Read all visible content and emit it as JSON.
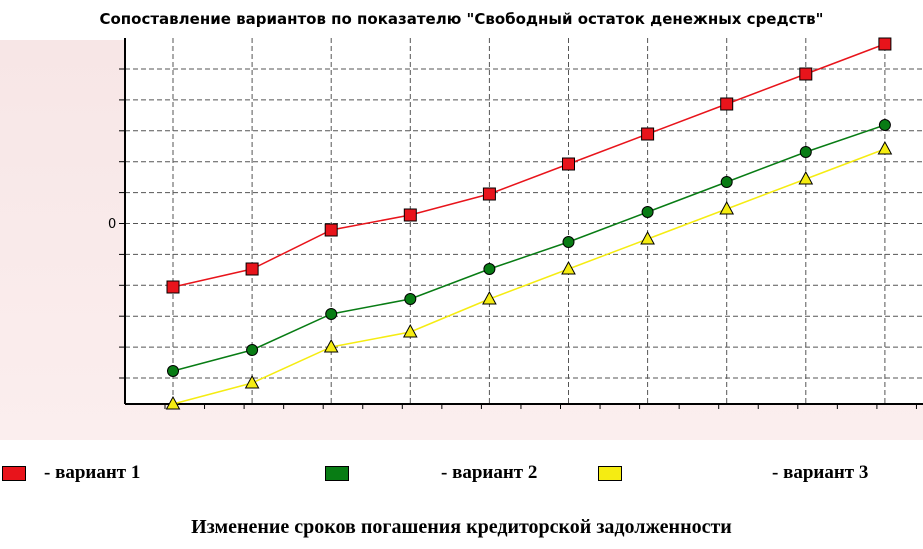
{
  "chart_data": {
    "type": "line",
    "title": "Сопоставление вариантов по показателю \"Свободный остаток денежных средств\"",
    "xlabel": "Изменение сроков погашения кредиторской задолженности",
    "ylabel": "",
    "y_tick_label_visible": "0",
    "x": [
      1,
      2,
      3,
      4,
      5,
      6,
      7,
      8,
      9,
      10
    ],
    "ylim": [
      0,
      12.2
    ],
    "grid": true,
    "legend_position": "bottom",
    "series": [
      {
        "name": "- вариант 1",
        "color": "#e8141b",
        "marker": "square",
        "values": [
          3.9,
          4.5,
          5.8,
          6.3,
          7.0,
          8.0,
          9.0,
          10.0,
          11.0,
          12.0
        ]
      },
      {
        "name": "- вариант 2",
        "color": "#087c14",
        "marker": "circle",
        "values": [
          1.1,
          1.8,
          3.0,
          3.5,
          4.5,
          5.4,
          6.4,
          7.4,
          8.4,
          9.3
        ]
      },
      {
        "name": "- вариант 3",
        "color": "#f5ec12",
        "marker": "triangle",
        "values": [
          0.0,
          0.7,
          1.9,
          2.4,
          3.5,
          4.5,
          5.5,
          6.5,
          7.5,
          8.5
        ]
      }
    ]
  }
}
